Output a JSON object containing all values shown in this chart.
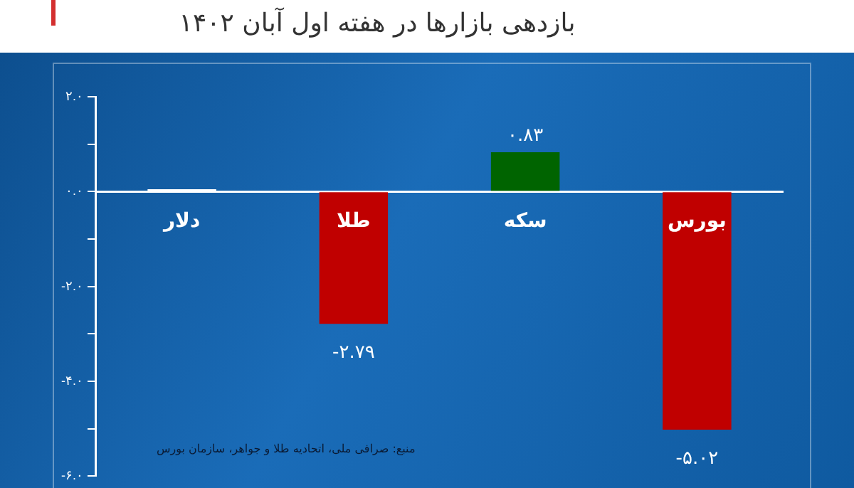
{
  "chart_data": {
    "type": "bar",
    "title": "بازدهی بازارها در هفته اول آبان ۱۴۰۲",
    "categories": [
      "دلار",
      "طلا",
      "سکه",
      "بورس"
    ],
    "values": [
      0.05,
      -2.79,
      0.83,
      -5.02
    ],
    "colors": [
      "#ffffff",
      "#c00000",
      "#006400",
      "#c00000"
    ],
    "value_labels": [
      null,
      "-۲.۷۹",
      "۰.۸۳",
      "-۵.۰۲"
    ],
    "ylim": [
      -6,
      2
    ],
    "yticks": [
      {
        "value": 2,
        "label": "۲.۰"
      },
      {
        "value": 1,
        "label": null
      },
      {
        "value": 0,
        "label": "۰.۰"
      },
      {
        "value": -1,
        "label": null
      },
      {
        "value": -2,
        "label": "-۲.۰"
      },
      {
        "value": -3,
        "label": null
      },
      {
        "value": -4,
        "label": "-۴.۰"
      },
      {
        "value": -5,
        "label": null
      },
      {
        "value": -6,
        "label": "-۶.۰"
      }
    ],
    "grid": false,
    "legend": false,
    "annotations": [
      "منبع: صرافی ملی، اتحادیه طلا و جواهر، سازمان بورس"
    ]
  }
}
